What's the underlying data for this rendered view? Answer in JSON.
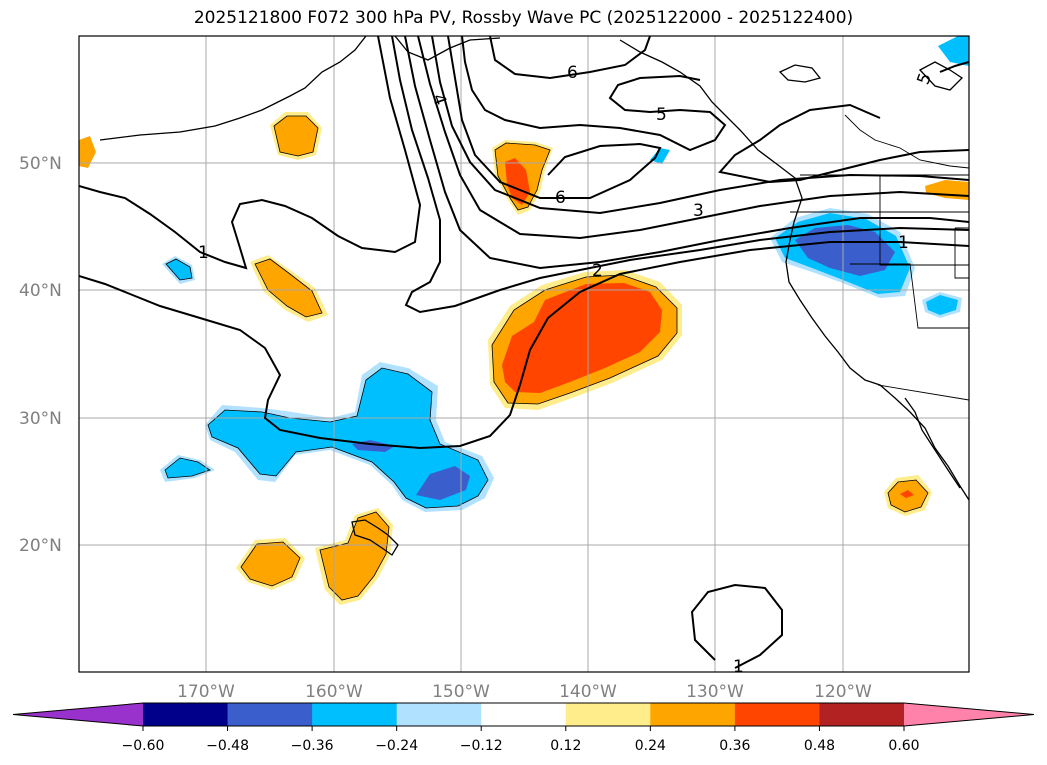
{
  "title": "2025121800 F072 300 hPa PV, Rossby Wave PC (2025122000 - 2025122400)",
  "lat_labels": [
    "50°N",
    "40°N",
    "30°N",
    "20°N"
  ],
  "lon_labels": [
    "170°W",
    "160°W",
    "150°W",
    "140°W",
    "130°W",
    "120°W"
  ],
  "contour_labels": [
    "6",
    "5",
    "4",
    "6",
    "3",
    "2",
    "1",
    "1",
    "1",
    "5"
  ],
  "colorbar": {
    "ticks": [
      "−0.60",
      "−0.48",
      "−0.36",
      "−0.24",
      "−0.12",
      "0.12",
      "0.24",
      "0.36",
      "0.48",
      "0.60"
    ],
    "colors": [
      "#9932cc",
      "#00008b",
      "#3a5fcd",
      "#00bfff",
      "#b0e2ff",
      "#ffffff",
      "#ffec8b",
      "#ffa500",
      "#ff4500",
      "#b22222",
      "#ff82ab"
    ]
  }
}
